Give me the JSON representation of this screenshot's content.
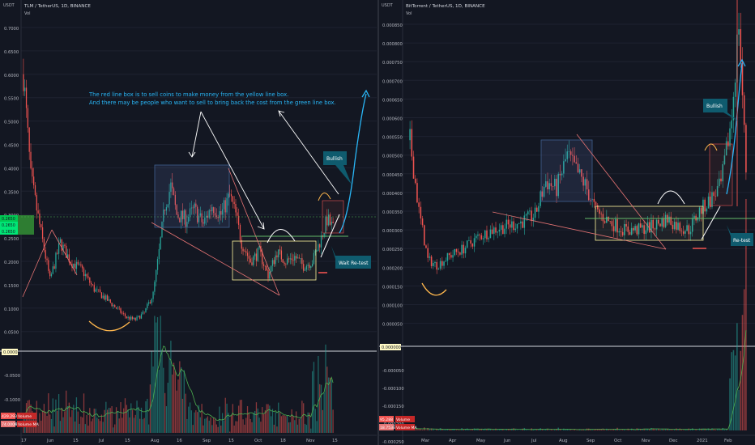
{
  "panels": {
    "left": {
      "title": "TLM / TetherUS, 1D, BINANCE",
      "sub": "Vol",
      "axis_unit": "USDT",
      "price_badges": [
        "0.2650",
        "0.2650",
        "0.2650"
      ],
      "vol_badges": [
        "429.293M",
        "74.000M"
      ],
      "vol_badge_labels": [
        "Volume",
        "Volume MA"
      ],
      "zero_badge": "0.0000"
    },
    "right": {
      "title": "BitTorrent / TetherUS, 1D, BINANCE",
      "sub": "Vol",
      "axis_unit": "USDT",
      "vol_badges": [
        "95.288",
        "18.753B"
      ],
      "vol_badge_labels": [
        "Volume",
        "Volume MA"
      ],
      "zero_badge": "0.000000"
    }
  },
  "annotations": {
    "note_line1": "The red line box is to sell coins to make money from the yellow line box.",
    "note_line2": "And there may be people who want to sell to bring back the cost from the green line box.",
    "left_bullish": "Bullish",
    "left_wait": "Wait Re-test",
    "right_bullish": "Bullish",
    "right_retest": "Re-test"
  },
  "colors": {
    "background": "#131722",
    "up": "#26a69a",
    "down": "#ef5350",
    "note_text": "#29b6f6",
    "callout": "#0f5b6e",
    "ma_line": "#4caf50"
  },
  "chart_data": [
    {
      "type": "candlestick",
      "symbol": "TLM / TetherUS",
      "y_ticks": [
        "0.7000",
        "0.6500",
        "0.6000",
        "0.5500",
        "0.5000",
        "0.4500",
        "0.4000",
        "0.3500",
        "0.3000",
        "0.2500",
        "0.2000",
        "0.1500",
        "0.1000",
        "0.0500"
      ],
      "vol_ticks": [
        "-0.0500",
        "-0.1000",
        "-0.1500"
      ],
      "x_ticks": [
        "17",
        "Jun",
        "15",
        "Jul",
        "15",
        "Aug",
        "16",
        "Sep",
        "15",
        "Oct",
        "18",
        "Nov",
        "15"
      ],
      "ylim": [
        0.0,
        0.72
      ],
      "price_path": [
        [
          0,
          0.6
        ],
        [
          5,
          0.38
        ],
        [
          12,
          0.26
        ],
        [
          18,
          0.16
        ],
        [
          25,
          0.24
        ],
        [
          32,
          0.2
        ],
        [
          40,
          0.18
        ],
        [
          48,
          0.14
        ],
        [
          56,
          0.12
        ],
        [
          63,
          0.1
        ],
        [
          70,
          0.08
        ],
        [
          76,
          0.075
        ],
        [
          82,
          0.09
        ],
        [
          88,
          0.13
        ],
        [
          92,
          0.22
        ],
        [
          96,
          0.32
        ],
        [
          100,
          0.36
        ],
        [
          104,
          0.3
        ],
        [
          110,
          0.29
        ],
        [
          116,
          0.31
        ],
        [
          122,
          0.28
        ],
        [
          128,
          0.32
        ],
        [
          134,
          0.3
        ],
        [
          140,
          0.34
        ],
        [
          144,
          0.3
        ],
        [
          148,
          0.24
        ],
        [
          154,
          0.2
        ],
        [
          160,
          0.22
        ],
        [
          166,
          0.17
        ],
        [
          172,
          0.22
        ],
        [
          178,
          0.2
        ],
        [
          184,
          0.21
        ],
        [
          190,
          0.19
        ],
        [
          196,
          0.2
        ],
        [
          202,
          0.25
        ],
        [
          206,
          0.29
        ],
        [
          210,
          0.27
        ]
      ]
    },
    {
      "type": "candlestick",
      "symbol": "BitTorrent / TetherUS",
      "y_ticks": [
        "0.000850",
        "0.000800",
        "0.000750",
        "0.000700",
        "0.000650",
        "0.000600",
        "0.000550",
        "0.000500",
        "0.000450",
        "0.000400",
        "0.000350",
        "0.000300",
        "0.000250",
        "0.000200",
        "0.000150",
        "0.000100",
        "0.000050"
      ],
      "vol_ticks": [
        "-0.000050",
        "-0.000100",
        "-0.000150",
        "-0.000200",
        "-0.000250"
      ],
      "x_ticks": [
        "Mar",
        "Apr",
        "May",
        "Jun",
        "Jul",
        "Aug",
        "Sep",
        "Oct",
        "Nov",
        "Dec",
        "2021",
        "Feb"
      ],
      "ylim": [
        0.0,
        0.00086
      ],
      "price_path": [
        [
          0,
          0.00054
        ],
        [
          5,
          0.00035
        ],
        [
          10,
          0.00022
        ],
        [
          15,
          0.000205
        ],
        [
          22,
          0.00023
        ],
        [
          30,
          0.00025
        ],
        [
          38,
          0.00028
        ],
        [
          46,
          0.0003
        ],
        [
          54,
          0.00031
        ],
        [
          62,
          0.00032
        ],
        [
          70,
          0.00034
        ],
        [
          76,
          0.00043
        ],
        [
          82,
          0.00041
        ],
        [
          88,
          0.0005
        ],
        [
          94,
          0.00045
        ],
        [
          98,
          0.00042
        ],
        [
          104,
          0.00035
        ],
        [
          112,
          0.00032
        ],
        [
          120,
          0.0003
        ],
        [
          128,
          0.0003
        ],
        [
          136,
          0.00031
        ],
        [
          144,
          0.00033
        ],
        [
          150,
          0.00031
        ],
        [
          156,
          0.0003
        ],
        [
          162,
          0.00035
        ],
        [
          168,
          0.00038
        ],
        [
          174,
          0.00042
        ],
        [
          180,
          0.0006
        ],
        [
          184,
          0.00086
        ],
        [
          188,
          0.00046
        ]
      ]
    }
  ]
}
